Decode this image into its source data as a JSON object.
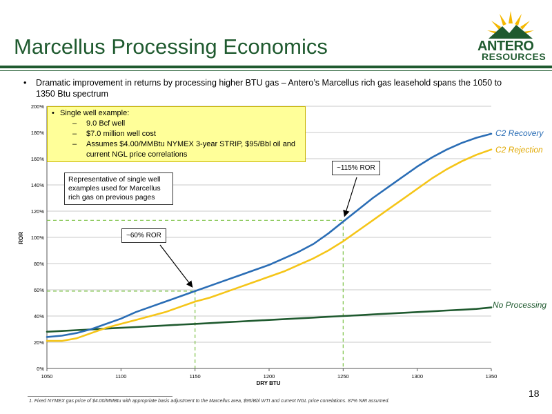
{
  "header": {
    "title": "Marcellus Processing Economics",
    "logo_name": "ANTERO",
    "logo_sub": "RESOURCES"
  },
  "bullet": "Dramatic improvement in returns by processing higher BTU gas – Antero’s Marcellus rich gas leasehold spans the 1050 to 1350 Btu spectrum",
  "callout": {
    "head": "Single well example:",
    "items": [
      "9.0 Bcf well",
      "$7.0 million well cost",
      "Assumes $4.00/MMBtu NYMEX 3-year STRIP, $95/Bbl oil and current NGL price correlations"
    ]
  },
  "note_box": "Representative of single well examples used for Marcellus rich gas on previous pages",
  "annotations": {
    "a60": "~60% ROR",
    "a115": "~115% ROR"
  },
  "footnote": "1.   Fixed NYMEX gas price of $4.00/MMBtu with appropriate basis adjustment to the Marcellus area, $95/Bbl WTI and current NGL price correlations. 87% NRI assumed.",
  "page_number": "18",
  "colors": {
    "title": "#1f5a2f",
    "c2_recovery": "#2a6db5",
    "c2_rejection": "#f5c518",
    "no_processing": "#1f5a2f",
    "guide": "#7ac143",
    "callout_bg": "#ffff99"
  },
  "chart_data": {
    "type": "line",
    "xlabel": "DRY BTU",
    "ylabel": "ROR",
    "xlim": [
      1050,
      1350
    ],
    "ylim": [
      0,
      200
    ],
    "x_ticks": [
      "1050",
      "1100",
      "1150",
      "1200",
      "1250",
      "1300",
      "1350"
    ],
    "y_ticks": [
      "0%",
      "20%",
      "40%",
      "60%",
      "80%",
      "100%",
      "120%",
      "140%",
      "160%",
      "180%",
      "200%"
    ],
    "grid": true,
    "x": [
      1050,
      1060,
      1070,
      1080,
      1090,
      1100,
      1110,
      1120,
      1130,
      1140,
      1150,
      1160,
      1170,
      1180,
      1190,
      1200,
      1210,
      1220,
      1230,
      1240,
      1250,
      1260,
      1270,
      1280,
      1290,
      1300,
      1310,
      1320,
      1330,
      1340,
      1350
    ],
    "series": [
      {
        "name": "C2 Recovery",
        "key": "c2_recovery",
        "values": [
          24,
          25,
          27,
          30,
          34,
          38,
          43,
          47,
          51,
          55,
          59,
          63,
          67,
          71,
          75,
          79,
          84,
          89,
          95,
          103,
          112,
          121,
          130,
          138,
          146,
          154,
          161,
          167,
          172,
          176,
          179
        ]
      },
      {
        "name": "C2 Rejection",
        "key": "c2_rejection",
        "values": [
          21,
          21,
          23,
          27,
          31,
          34,
          37,
          40,
          43,
          47,
          51,
          54,
          58,
          62,
          66,
          70,
          74,
          79,
          84,
          90,
          97,
          105,
          113,
          121,
          129,
          137,
          145,
          152,
          158,
          163,
          167
        ]
      },
      {
        "name": "No Processing",
        "key": "no_processing",
        "values": [
          28,
          28.6,
          29.2,
          29.8,
          30.4,
          31,
          31.6,
          32.2,
          32.8,
          33.4,
          34,
          34.6,
          35.2,
          35.8,
          36.4,
          37,
          37.6,
          38.2,
          38.8,
          39.4,
          40,
          40.6,
          41.2,
          41.8,
          42.4,
          43,
          43.6,
          44.2,
          44.8,
          45.4,
          46.5
        ]
      }
    ],
    "reference_points": [
      {
        "x": 1150,
        "y": 59,
        "label": "~60% ROR"
      },
      {
        "x": 1250,
        "y": 113,
        "label": "~115% ROR"
      }
    ]
  }
}
